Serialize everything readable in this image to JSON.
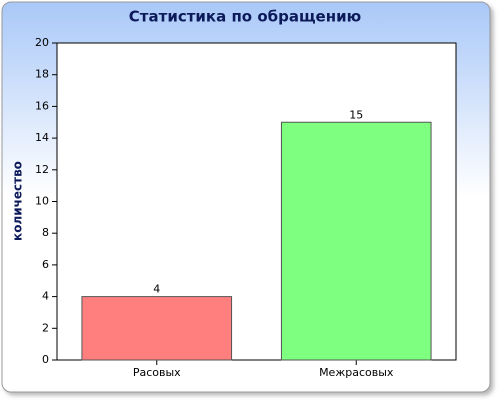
{
  "chart_data": {
    "type": "bar",
    "title": "Статистика по обращению",
    "y_label": "количество",
    "categories": [
      "Расовых",
      "Межрасовых"
    ],
    "values": [
      4,
      15
    ],
    "colors": [
      "#ff7f7f",
      "#7fff7f"
    ],
    "ylim": [
      0,
      20
    ],
    "yticks": [
      0,
      2,
      4,
      6,
      8,
      10,
      12,
      14,
      16,
      18,
      20
    ],
    "grid": false
  }
}
